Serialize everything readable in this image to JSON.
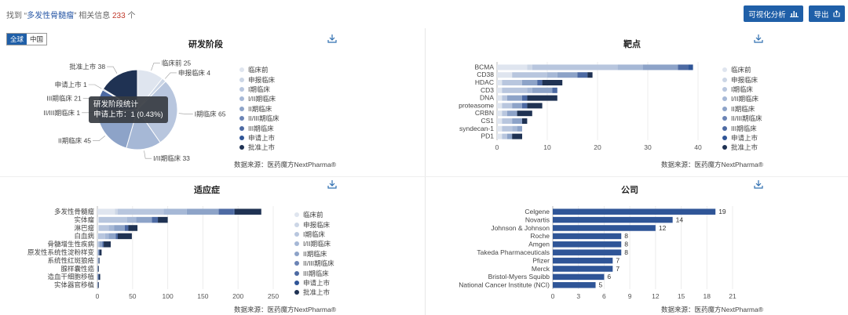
{
  "search": {
    "prefix": "找到 “",
    "keyword": "多发性骨髓瘤",
    "middle": "” 相关信息 ",
    "count": "233",
    "suffix": " 个"
  },
  "buttons": {
    "visualize": "可视化分析",
    "export": "导出"
  },
  "region_toggle": [
    "全球",
    "中国"
  ],
  "source_text": "数据来源：医药魔方NextPharma®",
  "legend_labels": [
    "临床前",
    "申报临床",
    "I期临床",
    "I/II期临床",
    "II期临床",
    "II/III期临床",
    "III期临床",
    "申请上市",
    "批准上市"
  ],
  "colors": {
    "stages": [
      "#dfe5ef",
      "#ccd6e6",
      "#b8c6de",
      "#a6b8d6",
      "#8da3c8",
      "#6b84b5",
      "#4d6aa3",
      "#2f5597",
      "#1f3253"
    ],
    "primary": "#1f5fa8",
    "company_bar": "#2f5597"
  },
  "tooltip": {
    "title": "研发阶段统计",
    "line": "申请上市：1 (0.43%)"
  },
  "chart_data": [
    {
      "type": "pie",
      "title": "研发阶段",
      "slices": [
        {
          "label": "临床前",
          "value": 25,
          "text": "临床前 25"
        },
        {
          "label": "申报临床",
          "value": 4,
          "text": "申报临床 4"
        },
        {
          "label": "I期临床",
          "value": 65,
          "text": "I期临床 65"
        },
        {
          "label": "I/II期临床",
          "value": 33,
          "text": "I/II期临床 33"
        },
        {
          "label": "II期临床",
          "value": 45,
          "text": "II期临床 45"
        },
        {
          "label": "II/III期临床",
          "value": 1,
          "text": "II/III期临床 1"
        },
        {
          "label": "III期临床",
          "value": 21,
          "text": "III期临床 21"
        },
        {
          "label": "申请上市",
          "value": 1,
          "text": "申请上市 1"
        },
        {
          "label": "批准上市",
          "value": 38,
          "text": "批准上市 38"
        }
      ]
    },
    {
      "type": "bar",
      "title": "靶点",
      "orientation": "horizontal",
      "stacked": true,
      "categories": [
        "BCMA",
        "CD38",
        "HDAC",
        "CD3",
        "DNA",
        "proteasome",
        "CRBN",
        "CS1",
        "syndecan-1",
        "PD1"
      ],
      "series": [
        {
          "name": "临床前",
          "values": [
            6,
            3,
            1,
            1,
            1,
            1,
            1,
            1,
            1,
            1
          ]
        },
        {
          "name": "申报临床",
          "values": [
            1,
            0,
            0,
            0,
            0,
            0,
            0,
            0,
            0,
            0
          ]
        },
        {
          "name": "I期临床",
          "values": [
            17,
            7,
            4,
            5,
            1,
            2,
            1,
            2,
            2,
            1
          ]
        },
        {
          "name": "I/II期临床",
          "values": [
            5,
            2,
            0,
            1,
            0,
            0,
            0,
            0,
            1,
            0
          ]
        },
        {
          "name": "II期临床",
          "values": [
            7,
            4,
            3,
            4,
            3,
            2,
            2,
            2,
            1,
            1
          ]
        },
        {
          "name": "II/III期临床",
          "values": [
            0,
            0,
            0,
            0,
            0,
            0,
            0,
            0,
            0,
            0
          ]
        },
        {
          "name": "III期临床",
          "values": [
            2,
            2,
            1,
            1,
            1,
            1,
            0,
            0,
            0,
            0
          ]
        },
        {
          "name": "申请上市",
          "values": [
            1,
            0,
            0,
            0,
            0,
            0,
            0,
            0,
            0,
            0
          ]
        },
        {
          "name": "批准上市",
          "values": [
            0,
            1,
            4,
            0,
            6,
            3,
            3,
            1,
            0,
            2
          ]
        }
      ],
      "xlim": [
        0,
        40
      ],
      "xticks": [
        0,
        10,
        20,
        30,
        40
      ]
    },
    {
      "type": "bar",
      "title": "适应症",
      "orientation": "horizontal",
      "stacked": true,
      "categories": [
        "多发性骨髓瘤",
        "实体瘤",
        "淋巴瘤",
        "白血病",
        "骨髓增生性疾病",
        "原发性系统性淀粉样变",
        "系统性红斑狼疮",
        "腺样囊性癌",
        "造血干细胞移植",
        "实体器官移植"
      ],
      "series": [
        {
          "name": "临床前",
          "values": [
            25,
            2,
            2,
            1,
            0,
            0,
            0,
            0,
            0,
            0
          ]
        },
        {
          "name": "申报临床",
          "values": [
            4,
            0,
            0,
            0,
            0,
            0,
            0,
            0,
            0,
            0
          ]
        },
        {
          "name": "I期临床",
          "values": [
            65,
            40,
            14,
            10,
            2,
            1,
            1,
            0,
            0,
            0
          ]
        },
        {
          "name": "I/II期临床",
          "values": [
            33,
            13,
            8,
            5,
            1,
            0,
            0,
            0,
            0,
            0
          ]
        },
        {
          "name": "II期临床",
          "values": [
            45,
            22,
            15,
            10,
            4,
            1,
            1,
            1,
            1,
            1
          ]
        },
        {
          "name": "II/III期临床",
          "values": [
            1,
            1,
            0,
            0,
            0,
            0,
            0,
            0,
            0,
            0
          ]
        },
        {
          "name": "III期临床",
          "values": [
            21,
            8,
            5,
            3,
            2,
            1,
            0,
            0,
            1,
            0
          ]
        },
        {
          "name": "申请上市",
          "values": [
            1,
            0,
            0,
            0,
            0,
            0,
            0,
            0,
            0,
            0
          ]
        },
        {
          "name": "批准上市",
          "values": [
            38,
            14,
            13,
            20,
            10,
            3,
            1,
            1,
            2,
            1
          ]
        }
      ],
      "xlim": [
        0,
        250
      ],
      "xticks": [
        0,
        50,
        100,
        150,
        200,
        250
      ]
    },
    {
      "type": "bar",
      "title": "公司",
      "orientation": "horizontal",
      "categories": [
        "Celgene",
        "Novartis",
        "Johnson & Johnson",
        "Roche",
        "Amgen",
        "Takeda Pharmaceuticals",
        "Pfizer",
        "Merck",
        "Bristol-Myers Squibb",
        "National Cancer Institute (NCI)"
      ],
      "values": [
        19,
        14,
        12,
        8,
        8,
        8,
        7,
        7,
        6,
        5
      ],
      "xlim": [
        0,
        21
      ],
      "xticks": [
        0,
        3,
        6,
        9,
        12,
        15,
        18,
        21
      ]
    }
  ]
}
